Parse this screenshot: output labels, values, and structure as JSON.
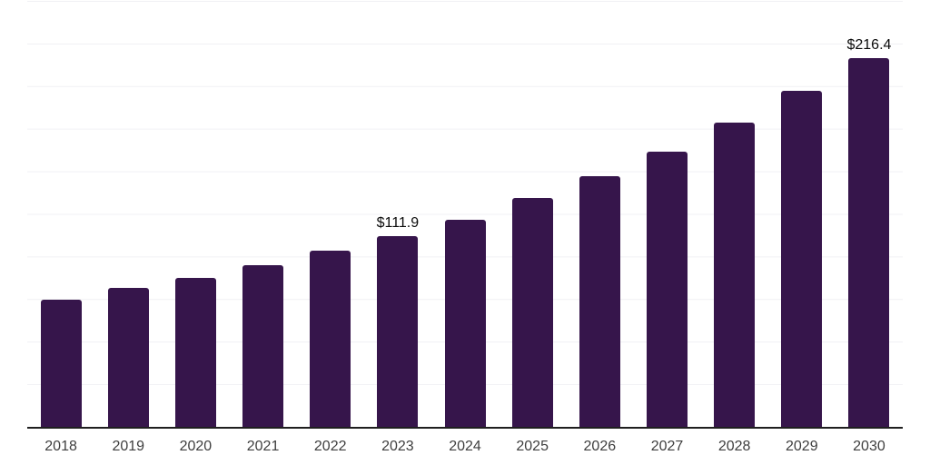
{
  "chart_data": {
    "type": "bar",
    "title": "",
    "xlabel": "",
    "ylabel": "",
    "categories": [
      "2018",
      "2019",
      "2020",
      "2021",
      "2022",
      "2023",
      "2024",
      "2025",
      "2026",
      "2027",
      "2028",
      "2029",
      "2030"
    ],
    "values": [
      74.8,
      81.3,
      87.5,
      94.7,
      103.6,
      111.9,
      121.8,
      134.5,
      146.9,
      161.5,
      178.6,
      197.0,
      216.4
    ],
    "bar_labels": [
      "",
      "",
      "",
      "",
      "",
      "$111.9",
      "",
      "",
      "",
      "",
      "",
      "",
      "$216.4"
    ],
    "ylim": [
      0,
      250
    ],
    "gridline_step": 25,
    "grid": true,
    "legend": false,
    "y_axis_labels_visible": false
  },
  "colors": {
    "bar": "#36154B",
    "gridline": "#F1F1F4",
    "axis": "#1F1F1F",
    "tick_label": "#3E3E3E",
    "data_label": "#0B0B0B",
    "background": "#FFFFFF"
  }
}
